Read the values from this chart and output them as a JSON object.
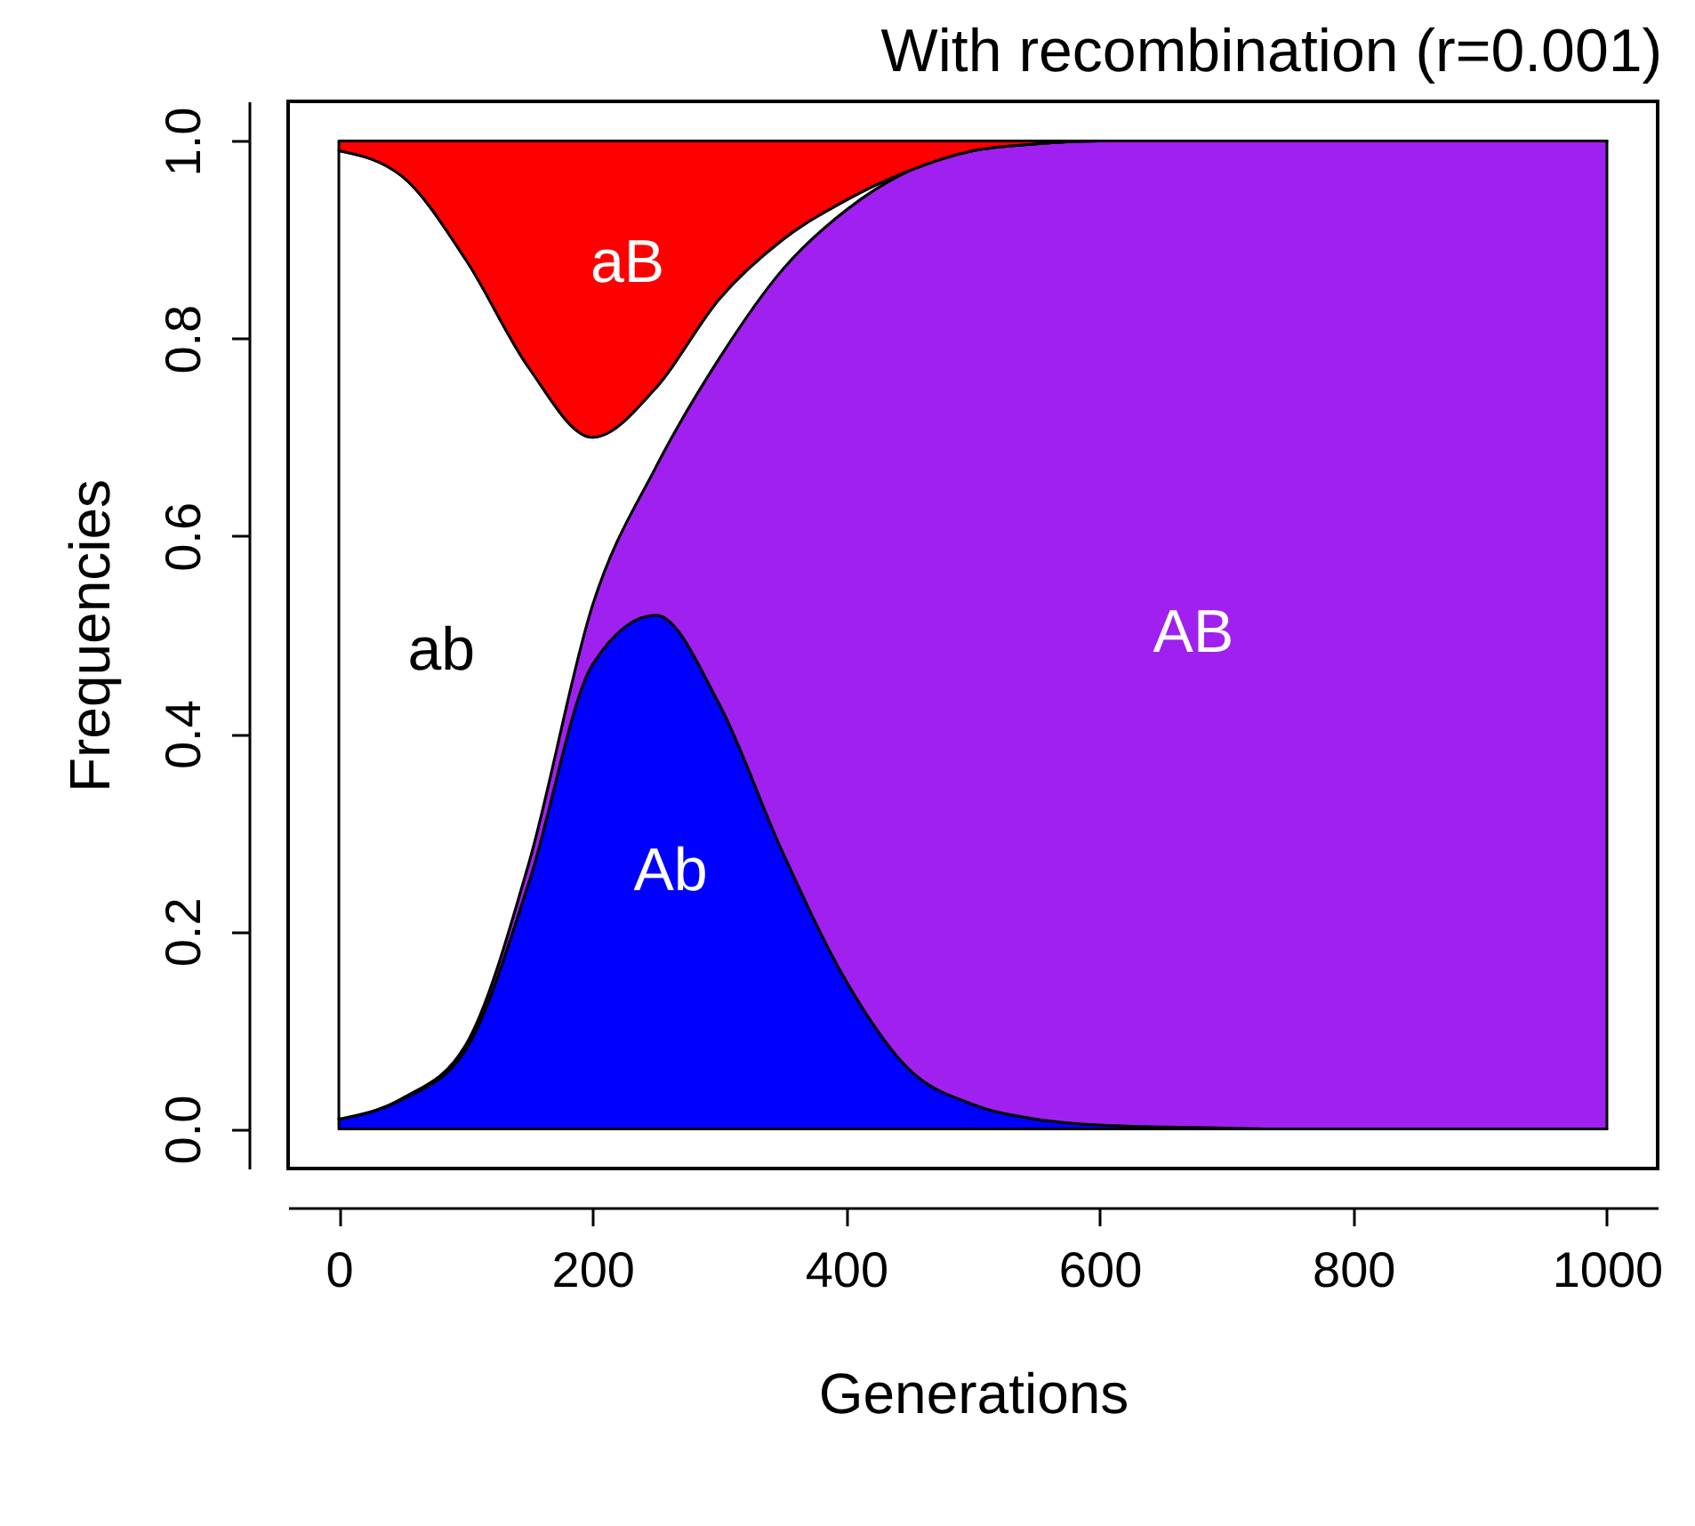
{
  "chart_data": {
    "type": "area",
    "stacked": true,
    "title": "With recombination (r=0.001)",
    "xlabel": "Generations",
    "ylabel": "Frequencies",
    "x": [
      0,
      50,
      100,
      150,
      200,
      250,
      300,
      350,
      400,
      450,
      500,
      550,
      600,
      650,
      700,
      750,
      800,
      850,
      900,
      950,
      1000
    ],
    "series": [
      {
        "name": "Ab",
        "color": "#0000ff",
        "values": [
          0.01,
          0.03,
          0.08,
          0.25,
          0.47,
          0.52,
          0.43,
          0.28,
          0.15,
          0.06,
          0.025,
          0.01,
          0.004,
          0.002,
          0.001,
          0,
          0,
          0,
          0,
          0,
          0
        ]
      },
      {
        "name": "AB",
        "color": "#a020f0",
        "values": [
          0,
          0.001,
          0.005,
          0.02,
          0.06,
          0.15,
          0.35,
          0.59,
          0.78,
          0.91,
          0.965,
          0.987,
          0.996,
          0.998,
          0.999,
          1,
          1,
          1,
          1,
          1,
          1
        ]
      },
      {
        "name": "ab",
        "color": "#ffffff",
        "values": [
          0.98,
          0.933,
          0.795,
          0.5,
          0.17,
          0.08,
          0.06,
          0.03,
          0.01,
          0,
          0,
          0,
          0,
          0,
          0,
          0,
          0,
          0,
          0,
          0,
          0
        ]
      },
      {
        "name": "aB",
        "color": "#ff0000",
        "values": [
          0.01,
          0.036,
          0.12,
          0.23,
          0.3,
          0.25,
          0.16,
          0.1,
          0.06,
          0.03,
          0.01,
          0.003,
          0,
          0,
          0,
          0,
          0,
          0,
          0,
          0,
          0
        ]
      }
    ],
    "xlim": [
      -40,
      1040
    ],
    "ylim": [
      -0.04,
      1.04
    ],
    "xticks": [
      0,
      200,
      400,
      600,
      800,
      1000
    ],
    "yticks": [
      {
        "value": 0,
        "label": "0.0"
      },
      0.2,
      0.4,
      0.6,
      0.8,
      {
        "value": 1,
        "label": "1.0"
      }
    ],
    "grid": false,
    "legend": false
  }
}
